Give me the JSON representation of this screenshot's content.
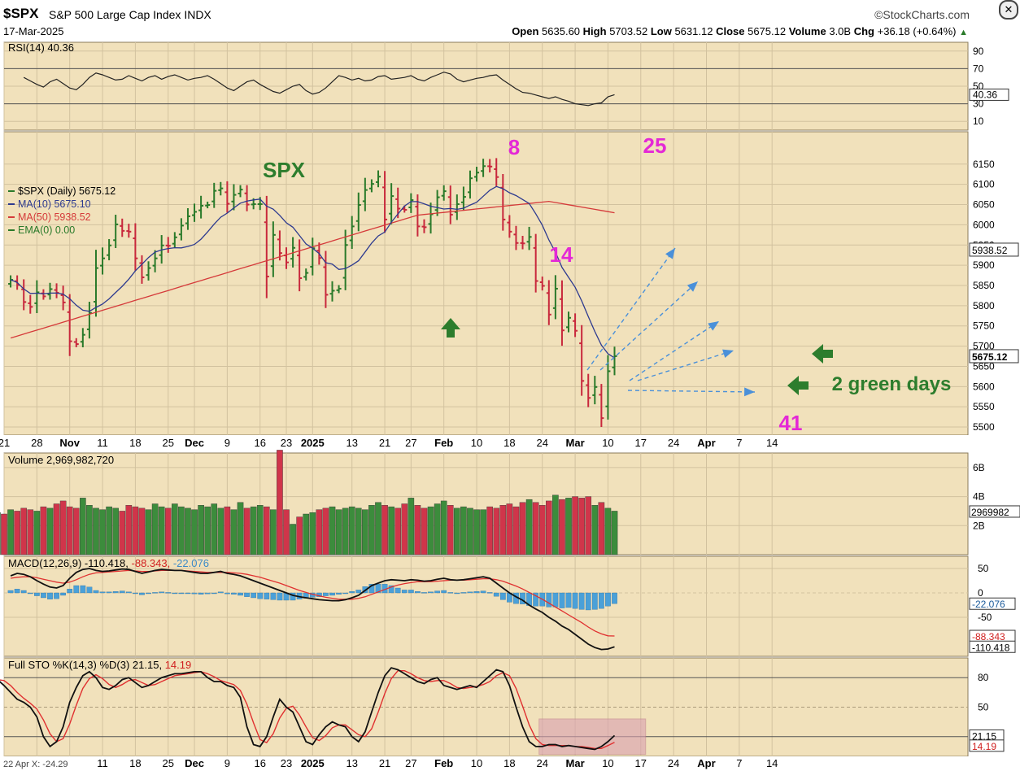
{
  "header": {
    "symbol": "$SPX",
    "name": "S&P 500 Large Cap Index",
    "exchange": "INDX",
    "date": "17-Mar-2025",
    "brand": "©StockCharts.com",
    "open_label": "Open",
    "open": "5635.60",
    "high_label": "High",
    "high": "5703.52",
    "low_label": "Low",
    "low": "5631.12",
    "close_label": "Close",
    "close": "5675.12",
    "volume_label": "Volume",
    "volume": "3.0B",
    "chg_label": "Chg",
    "chg": "+36.18 (+0.64%)",
    "close_icon": "close-x-icon"
  },
  "colors": {
    "panel_bg": "#f1e1bb",
    "up": "#2a7a2a",
    "down": "#c8283c",
    "ma10": "#2d3a8f",
    "ma50": "#d53a3a",
    "volume_up": "#3c8c3c",
    "volume_down": "#d0354a",
    "macd_hist": "#4aa0d8",
    "annotation_magenta": "#e428d6",
    "annotation_green": "#2d7d2d",
    "arrow_blue": "#4a90d9",
    "highlight_box": "#d9a0b0"
  },
  "chart_data": [
    {
      "type": "line",
      "panel": "rsi",
      "title": "RSI(14) 40.36",
      "last_value": "40.36",
      "ylim": [
        0,
        100
      ],
      "y_ticks": [
        "90",
        "70",
        "50",
        "30",
        "10"
      ],
      "reference_lines": [
        70,
        30
      ],
      "values": [
        60,
        56,
        52,
        49,
        55,
        58,
        53,
        48,
        46,
        52,
        60,
        65,
        63,
        60,
        57,
        58,
        62,
        59,
        56,
        60,
        62,
        58,
        61,
        63,
        60,
        57,
        59,
        60,
        62,
        58,
        53,
        48,
        45,
        50,
        55,
        57,
        52,
        48,
        44,
        42,
        46,
        50,
        52,
        45,
        41,
        43,
        48,
        55,
        62,
        60,
        57,
        59,
        56,
        57,
        61,
        62,
        58,
        59,
        60,
        62,
        58,
        56,
        60,
        63,
        66,
        64,
        58,
        55,
        57,
        59,
        60,
        62,
        63,
        57,
        52,
        47,
        43,
        42,
        40,
        38,
        36,
        38,
        35,
        33,
        30,
        29,
        28,
        30,
        31,
        38,
        40.36
      ]
    },
    {
      "type": "ohlc",
      "panel": "price",
      "title": "SPX",
      "legend": [
        {
          "name": "$SPX (Daily) 5675.12",
          "color": "#2a7a2a"
        },
        {
          "name": "MA(10) 5675.10",
          "color": "#2d3a8f"
        },
        {
          "name": "MA(50) 5938.52",
          "color": "#d53a3a"
        },
        {
          "name": "EMA(0) 0.00",
          "color": "#2a7a2a"
        }
      ],
      "ylim": [
        5480,
        6230
      ],
      "y_ticks": [
        "6150",
        "6100",
        "6050",
        "6000",
        "5950",
        "5900",
        "5850",
        "5800",
        "5750",
        "5700",
        "5650",
        "5600",
        "5550",
        "5500"
      ],
      "y_tick_values": [
        6150,
        6100,
        6050,
        6000,
        5950,
        5900,
        5850,
        5800,
        5750,
        5700,
        5650,
        5600,
        5550,
        5500
      ],
      "last_labels": [
        "5938.52",
        "5675.12"
      ],
      "x_ticks": [
        "21",
        "28",
        "Nov",
        "11",
        "18",
        "25",
        "Dec",
        "9",
        "16",
        "23",
        "2025",
        "13",
        "21",
        "27",
        "Feb",
        "10",
        "18",
        "24",
        "Mar",
        "10",
        "17",
        "24",
        "Apr",
        "7",
        "14"
      ],
      "x_tick_days": [
        0,
        5,
        10,
        15,
        20,
        25,
        29,
        34,
        39,
        43,
        47,
        53,
        58,
        62,
        67,
        72,
        77,
        82,
        87,
        92,
        97,
        102,
        107,
        112,
        117
      ],
      "close": [
        5864,
        5851,
        5809,
        5797,
        5833,
        5823,
        5841,
        5832,
        5808,
        5712,
        5705,
        5728,
        5782,
        5893,
        5917,
        5949,
        6001,
        5985,
        5983,
        5917,
        5870,
        5893,
        5917,
        5949,
        5948,
        5969,
        5998,
        6021,
        6032,
        6047,
        6049,
        6084,
        6090,
        6052,
        6074,
        6087,
        6050,
        6051,
        6051,
        5872,
        5975,
        5930,
        5907,
        5943,
        5868,
        5881,
        5942,
        5918,
        5827,
        5837,
        5842,
        5950,
        5996,
        6049,
        6086,
        6101,
        6119,
        6013,
        6071,
        6040,
        6037,
        6061,
        5996,
        5994,
        6026,
        6068,
        6083,
        6025,
        6051,
        6069,
        6115,
        6129,
        6145,
        6144,
        6118,
        6013,
        5983,
        5955,
        5954,
        5970,
        5861,
        5849,
        5778,
        5842,
        5739,
        5770,
        5738,
        5614,
        5572,
        5599,
        5522,
        5638,
        5675.12
      ],
      "annotations": [
        {
          "text": "8",
          "color": "#e428d6"
        },
        {
          "text": "14",
          "color": "#e428d6"
        },
        {
          "text": "25",
          "color": "#e428d6"
        },
        {
          "text": "41",
          "color": "#e428d6"
        },
        {
          "text": "2 green days",
          "color": "#2d7d2d"
        }
      ]
    },
    {
      "type": "bar",
      "panel": "volume",
      "title": "Volume 2,969,982,720",
      "last_label": "2969982",
      "y_ticks": [
        "6B",
        "4B",
        "2B"
      ],
      "ylim": [
        0,
        7000000000
      ],
      "values": [
        2.9,
        2.8,
        3.1,
        3.0,
        3.2,
        3.1,
        3.0,
        3.3,
        3.2,
        3.5,
        3.7,
        3.3,
        3.2,
        3.9,
        3.4,
        3.2,
        3.1,
        3.3,
        3.2,
        3.0,
        3.4,
        3.3,
        3.2,
        3.1,
        3.5,
        3.3,
        3.2,
        3.5,
        3.3,
        3.2,
        3.1,
        3.4,
        3.3,
        3.5,
        3.2,
        3.3,
        3.1,
        3.6,
        3.2,
        3.3,
        3.4,
        3.3,
        3.1,
        7.2,
        3.1,
        2.1,
        2.6,
        2.8,
        2.9,
        3.1,
        3.2,
        3.3,
        3.1,
        3.2,
        3.3,
        3.2,
        3.1,
        3.4,
        3.6,
        3.4,
        3.3,
        3.2,
        3.5,
        3.9,
        3.4,
        3.2,
        3.3,
        3.5,
        3.7,
        3.4,
        3.2,
        3.3,
        3.2,
        3.1,
        3.1,
        3.3,
        3.2,
        3.4,
        3.5,
        3.3,
        3.6,
        3.8,
        3.6,
        3.4,
        3.7,
        4.1,
        3.8,
        3.9,
        4.0,
        3.9,
        4.0,
        3.4,
        3.6,
        3.2,
        3.0
      ],
      "volume_unit": "billions"
    },
    {
      "type": "line",
      "panel": "macd",
      "title": "MACD(12,26,9)",
      "value_macd": "-110.418",
      "value_signal": "-88.343",
      "value_hist": "-22.076",
      "y_ticks": [
        "50",
        "0",
        "-50"
      ],
      "ylim": [
        -130,
        75
      ],
      "last_labels": [
        "-22.076",
        "-88.343",
        "-110.418"
      ],
      "macd": [
        35,
        40,
        38,
        33,
        25,
        18,
        12,
        10,
        15,
        30,
        42,
        48,
        50,
        46,
        44,
        45,
        47,
        49,
        48,
        44,
        40,
        43,
        46,
        48,
        47,
        46,
        46,
        44,
        42,
        40,
        40,
        42,
        44,
        40,
        38,
        35,
        30,
        25,
        20,
        15,
        10,
        5,
        0,
        -5,
        -8,
        -10,
        -12,
        -14,
        -15,
        -16,
        -16,
        -14,
        -10,
        -5,
        5,
        15,
        20,
        25,
        27,
        26,
        25,
        27,
        26,
        24,
        25,
        28,
        30,
        27,
        26,
        27,
        29,
        31,
        33,
        30,
        20,
        10,
        0,
        -8,
        -15,
        -25,
        -33,
        -40,
        -50,
        -58,
        -68,
        -75,
        -85,
        -95,
        -105,
        -112,
        -116,
        -115,
        -110.418
      ],
      "signal": [
        30,
        32,
        33,
        33,
        31,
        28,
        25,
        22,
        20,
        22,
        27,
        33,
        38,
        41,
        42,
        43,
        44,
        45,
        46,
        45,
        44,
        44,
        45,
        46,
        46,
        46,
        46,
        45,
        44,
        43,
        42,
        42,
        42,
        42,
        41,
        40,
        38,
        35,
        32,
        28,
        24,
        20,
        15,
        10,
        5,
        1,
        -3,
        -6,
        -9,
        -11,
        -13,
        -13,
        -13,
        -11,
        -8,
        -3,
        2,
        7,
        12,
        16,
        19,
        21,
        23,
        23,
        23,
        24,
        25,
        26,
        26,
        26,
        27,
        28,
        29,
        29,
        27,
        24,
        19,
        14,
        8,
        1,
        -6,
        -13,
        -21,
        -29,
        -37,
        -45,
        -53,
        -61,
        -70,
        -78,
        -84,
        -88,
        -88.343
      ]
    },
    {
      "type": "line",
      "panel": "stochastic",
      "title": "Full STO %K(14,3) %D(3)",
      "value_k": "21.15",
      "value_d": "14.19",
      "y_ticks": [
        "80",
        "50",
        "20"
      ],
      "ylim": [
        0,
        100
      ],
      "last_labels": [
        "21.15",
        "14.19"
      ],
      "k": [
        80,
        78,
        72,
        65,
        58,
        55,
        50,
        40,
        20,
        10,
        15,
        30,
        55,
        70,
        82,
        86,
        80,
        70,
        68,
        72,
        78,
        80,
        75,
        70,
        72,
        76,
        80,
        82,
        84,
        84,
        85,
        86,
        86,
        80,
        76,
        76,
        72,
        70,
        60,
        30,
        12,
        10,
        20,
        40,
        58,
        50,
        45,
        30,
        15,
        12,
        22,
        30,
        35,
        32,
        30,
        20,
        15,
        25,
        45,
        65,
        82,
        90,
        88,
        84,
        80,
        76,
        74,
        78,
        80,
        72,
        70,
        68,
        70,
        72,
        70,
        76,
        82,
        88,
        86,
        72,
        50,
        30,
        15,
        10,
        10,
        12,
        12,
        10,
        11,
        10,
        9,
        8,
        7,
        10,
        15,
        21.15
      ],
      "d": [
        76,
        78,
        77,
        72,
        65,
        59,
        54,
        48,
        37,
        23,
        15,
        18,
        33,
        52,
        69,
        79,
        83,
        79,
        73,
        70,
        73,
        77,
        78,
        75,
        72,
        73,
        76,
        79,
        82,
        83,
        84,
        85,
        86,
        84,
        81,
        77,
        75,
        73,
        67,
        53,
        34,
        17,
        14,
        23,
        39,
        49,
        51,
        42,
        30,
        19,
        16,
        21,
        29,
        32,
        32,
        27,
        22,
        20,
        28,
        45,
        64,
        79,
        87,
        87,
        84,
        80,
        77,
        76,
        77,
        77,
        74,
        70,
        69,
        70,
        71,
        73,
        76,
        82,
        85,
        82,
        69,
        51,
        32,
        18,
        12,
        11,
        11,
        11,
        11,
        10,
        10,
        9,
        8,
        8,
        11,
        14.19
      ],
      "highlight_label": ""
    }
  ],
  "footer": {
    "left_label": "22 Apr X: -24.29"
  }
}
